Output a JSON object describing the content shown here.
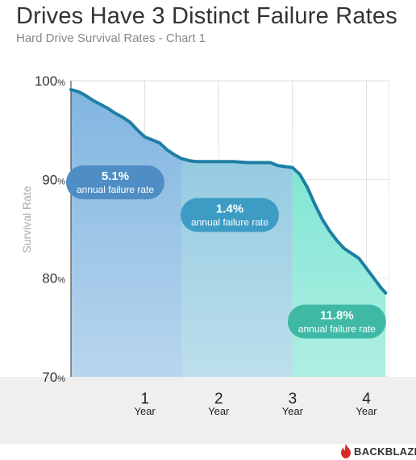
{
  "title": "Drives Have 3 Distinct Failure Rates",
  "subtitle": "Hard Drive Survival Rates - Chart 1",
  "brand": {
    "name": "BACKBLAZE",
    "logo_icon": "flame-icon",
    "logo_color": "#d6272b"
  },
  "chart_data": {
    "type": "area",
    "title": "Drives Have 3 Distinct Failure Rates",
    "subtitle": "Hard Drive Survival Rates - Chart 1",
    "xlabel": "",
    "ylabel": "Survival Rate",
    "xlim": [
      0,
      4.3
    ],
    "ylim": [
      70,
      100
    ],
    "y_ticks": [
      {
        "value": 100,
        "num": "100",
        "unit": "%"
      },
      {
        "value": 90,
        "num": "90",
        "unit": "%"
      },
      {
        "value": 80,
        "num": "80",
        "unit": "%"
      },
      {
        "value": 70,
        "num": "70",
        "unit": "%"
      }
    ],
    "x_ticks": [
      {
        "value": 1,
        "num": "1",
        "unit": "Year"
      },
      {
        "value": 2,
        "num": "2",
        "unit": "Year"
      },
      {
        "value": 3,
        "num": "3",
        "unit": "Year"
      },
      {
        "value": 4,
        "num": "4",
        "unit": "Year"
      }
    ],
    "grid": true,
    "line_color": "#1e7fa5",
    "series": [
      {
        "x": [
          0,
          0.1,
          0.2,
          0.3,
          0.4,
          0.5,
          0.6,
          0.7,
          0.8,
          0.9,
          1.0,
          1.1,
          1.2,
          1.3,
          1.4,
          1.5,
          1.6,
          1.7,
          1.8,
          2.0,
          2.2,
          2.4,
          2.6,
          2.7,
          2.8,
          2.9,
          3.0,
          3.1,
          3.2,
          3.3,
          3.4,
          3.5,
          3.6,
          3.7,
          3.8,
          3.9,
          4.0,
          4.1,
          4.2,
          4.26
        ],
        "values": [
          99.1,
          98.9,
          98.5,
          98.0,
          97.6,
          97.2,
          96.7,
          96.3,
          95.8,
          95.0,
          94.3,
          94.0,
          93.7,
          93.0,
          92.5,
          92.1,
          91.9,
          91.8,
          91.8,
          91.8,
          91.8,
          91.7,
          91.7,
          91.7,
          91.4,
          91.3,
          91.2,
          90.5,
          89.2,
          87.5,
          86.0,
          84.8,
          83.8,
          83.0,
          82.5,
          82.0,
          81.0,
          80.0,
          79.0,
          78.5
        ]
      }
    ],
    "regions": [
      {
        "x_start": 0,
        "x_end": 1.5,
        "color": "#7fb4e0",
        "label": "5.1%",
        "sublabel": "annual failure rate",
        "label_x": 0.6,
        "label_y": 89.7,
        "pill_color": "#4f8ec4"
      },
      {
        "x_start": 1.5,
        "x_end": 3.0,
        "color": "#86c4dc",
        "label": "1.4%",
        "sublabel": "annual failure rate",
        "label_x": 2.15,
        "label_y": 86.4,
        "pill_color": "#3d9cc3"
      },
      {
        "x_start": 3.0,
        "x_end": 4.26,
        "color": "#6ee2cd",
        "label": "11.8%",
        "sublabel": "annual failure rate",
        "label_x": 3.6,
        "label_y": 75.6,
        "pill_color": "#3fb9a5"
      }
    ]
  }
}
